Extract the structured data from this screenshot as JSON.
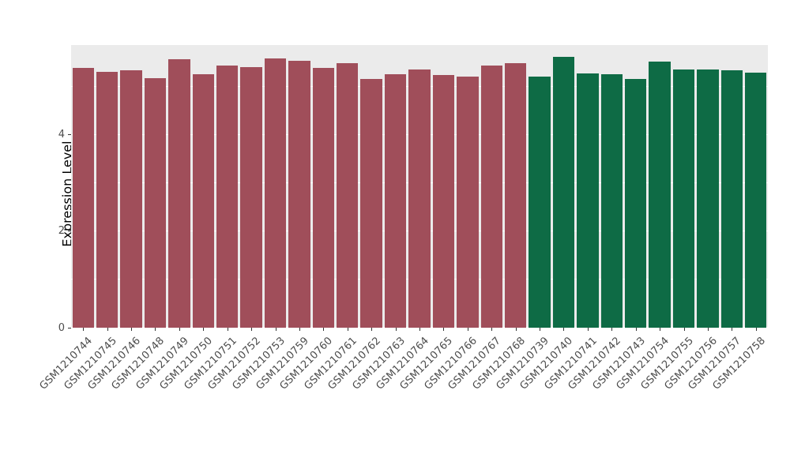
{
  "chart_data": {
    "type": "bar",
    "title": "",
    "xlabel": "",
    "ylabel": "Expression Level",
    "ylim": [
      0,
      5.85
    ],
    "yticks": [
      0,
      2,
      4
    ],
    "yticks_minor": [
      1,
      3,
      5
    ],
    "grid": true,
    "legend": false,
    "panel_bg": "#EBEBEB",
    "grid_color": "#FFFFFF",
    "group_colors": [
      "#A04E5A",
      "#0E6B45"
    ],
    "categories": [
      "GSM1210744",
      "GSM1210745",
      "GSM1210746",
      "GSM1210748",
      "GSM1210749",
      "GSM1210750",
      "GSM1210751",
      "GSM1210752",
      "GSM1210753",
      "GSM1210759",
      "GSM1210760",
      "GSM1210761",
      "GSM1210762",
      "GSM1210763",
      "GSM1210764",
      "GSM1210765",
      "GSM1210766",
      "GSM1210767",
      "GSM1210768",
      "GSM1210739",
      "GSM1210740",
      "GSM1210741",
      "GSM1210742",
      "GSM1210743",
      "GSM1210754",
      "GSM1210755",
      "GSM1210756",
      "GSM1210757",
      "GSM1210758"
    ],
    "values": [
      5.38,
      5.3,
      5.33,
      5.17,
      5.56,
      5.25,
      5.42,
      5.4,
      5.58,
      5.53,
      5.37,
      5.48,
      5.15,
      5.25,
      5.35,
      5.23,
      5.2,
      5.43,
      5.48,
      5.2,
      5.6,
      5.27,
      5.25,
      5.15,
      5.51,
      5.35,
      5.35,
      5.32,
      5.28
    ],
    "bar_groups": [
      0,
      0,
      0,
      0,
      0,
      0,
      0,
      0,
      0,
      0,
      0,
      0,
      0,
      0,
      0,
      0,
      0,
      0,
      0,
      1,
      1,
      1,
      1,
      1,
      1,
      1,
      1,
      1,
      1
    ]
  }
}
